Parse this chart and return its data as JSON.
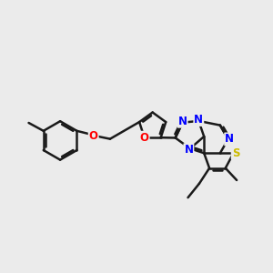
{
  "background_color": "#ebebeb",
  "bond_color": "#1a1a1a",
  "bond_width": 1.8,
  "atom_colors": {
    "N": "#0000FF",
    "O": "#FF0000",
    "S": "#CCBB00",
    "C": "#1a1a1a"
  },
  "font_size": 8.5,
  "figsize": [
    3.0,
    3.0
  ],
  "dpi": 100,
  "xlim": [
    0,
    10
  ],
  "ylim": [
    0,
    10
  ]
}
